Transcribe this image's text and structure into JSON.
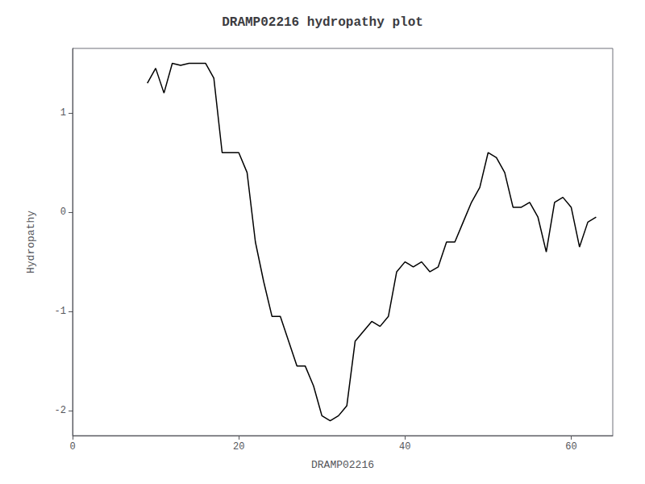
{
  "chart_data": {
    "type": "line",
    "title": "DRAMP02216 hydropathy plot",
    "xlabel": "DRAMP02216",
    "ylabel": "Hydropathy",
    "x": [
      9,
      10,
      11,
      12,
      13,
      14,
      15,
      16,
      17,
      18,
      19,
      20,
      21,
      22,
      23,
      24,
      25,
      26,
      27,
      28,
      29,
      30,
      31,
      32,
      33,
      34,
      35,
      36,
      37,
      38,
      39,
      40,
      41,
      42,
      43,
      44,
      45,
      46,
      47,
      48,
      49,
      50,
      51,
      52,
      53,
      54,
      55,
      56,
      57,
      58,
      59,
      60,
      61,
      62,
      63
    ],
    "values": [
      1.3,
      1.45,
      1.2,
      1.5,
      1.48,
      1.5,
      1.5,
      1.5,
      1.35,
      0.6,
      0.6,
      0.6,
      0.4,
      -0.3,
      -0.7,
      -1.05,
      -1.05,
      -1.3,
      -1.55,
      -1.55,
      -1.75,
      -2.05,
      -2.1,
      -2.05,
      -1.95,
      -1.3,
      -1.2,
      -1.1,
      -1.15,
      -1.05,
      -0.6,
      -0.5,
      -0.55,
      -0.5,
      -0.6,
      -0.55,
      -0.3,
      -0.3,
      -0.1,
      0.1,
      0.25,
      0.6,
      0.55,
      0.4,
      0.05,
      0.05,
      0.1,
      -0.05,
      -0.4,
      0.1,
      0.15,
      0.05,
      -0.35,
      -0.1,
      -0.05
    ],
    "color": "#000000",
    "xlim": [
      0,
      65
    ],
    "ylim": [
      -2.25,
      1.65
    ],
    "xticks": [
      0,
      20,
      40,
      60
    ],
    "yticks": [
      -2,
      -1,
      0,
      1
    ],
    "grid": false
  }
}
